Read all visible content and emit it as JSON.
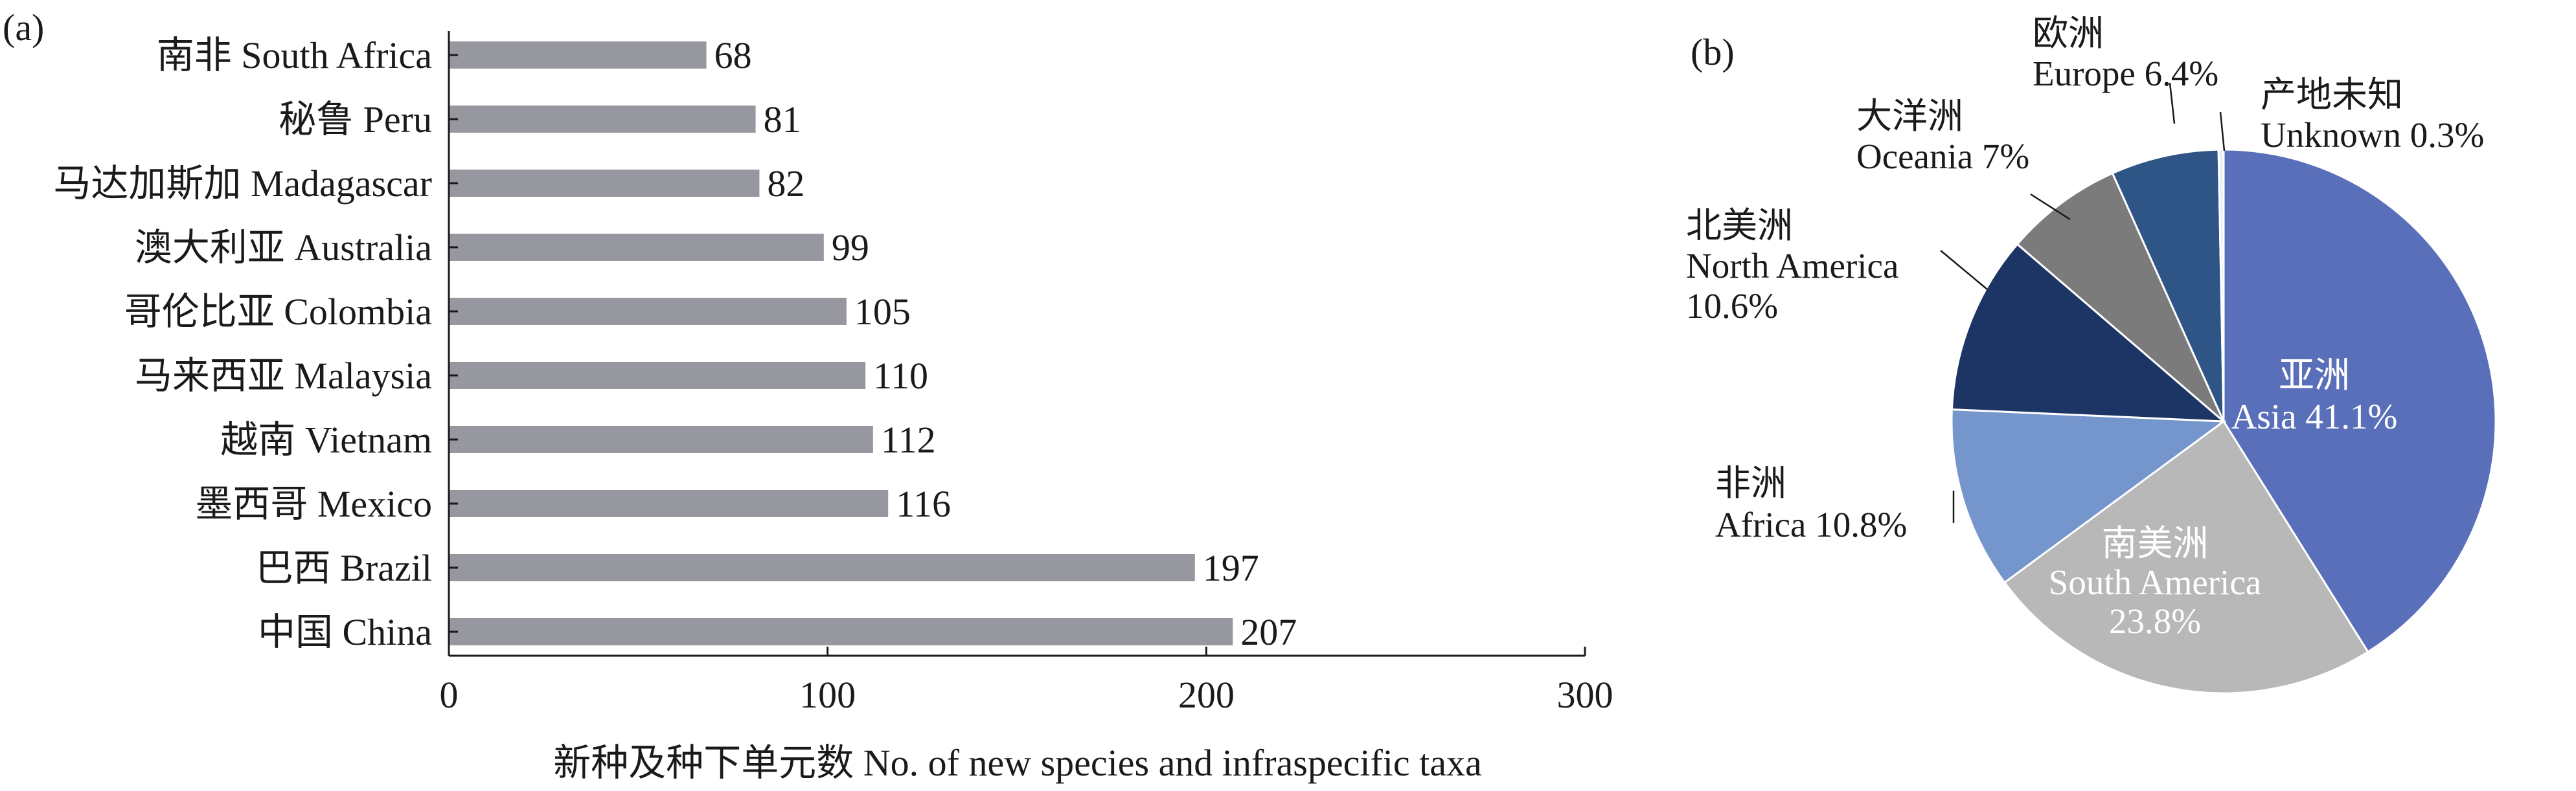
{
  "chart_data": [
    {
      "panel": "(a)",
      "type": "bar",
      "orientation": "horizontal",
      "categories": [
        "南非 South Africa",
        "秘鲁 Peru",
        "马达加斯加 Madagascar",
        "澳大利亚 Australia",
        "哥伦比亚 Colombia",
        "马来西亚 Malaysia",
        "越南 Vietnam",
        "墨西哥 Mexico",
        "巴西 Brazil",
        "中国 China"
      ],
      "values": [
        68,
        81,
        82,
        99,
        105,
        110,
        112,
        116,
        197,
        207
      ],
      "xlabel": "新种及种下单元数 No. of new species and infraspecific taxa",
      "xlim": [
        0,
        300
      ],
      "xticks": [
        0,
        100,
        200,
        300
      ],
      "bar_color": "#97979f",
      "grid": false
    },
    {
      "panel": "(b)",
      "type": "pie",
      "slices": [
        {
          "label_zh": "亚洲",
          "label_en": "Asia 41.1%",
          "value": 41.1,
          "color": "#5a6fb9"
        },
        {
          "label_zh": "南美洲",
          "label_en": "South America",
          "value_text": "23.8%",
          "value": 23.8,
          "color": "#b8b8b8"
        },
        {
          "label_zh": "非洲",
          "label_en": "Africa 10.8%",
          "value": 10.8,
          "color": "#7595cd"
        },
        {
          "label_zh": "北美洲",
          "label_en": "North America",
          "value_text": "10.6%",
          "value": 10.6,
          "color": "#1c3564"
        },
        {
          "label_zh": "大洋洲",
          "label_en": "Oceania 7%",
          "value": 7.0,
          "color": "#7b7b7b"
        },
        {
          "label_zh": "欧洲",
          "label_en": "Europe 6.4%",
          "value": 6.4,
          "color": "#2e5585"
        },
        {
          "label_zh": "产地未知",
          "label_en": "Unknown 0.3%",
          "value": 0.3,
          "color": "#e9eef7"
        }
      ]
    }
  ]
}
